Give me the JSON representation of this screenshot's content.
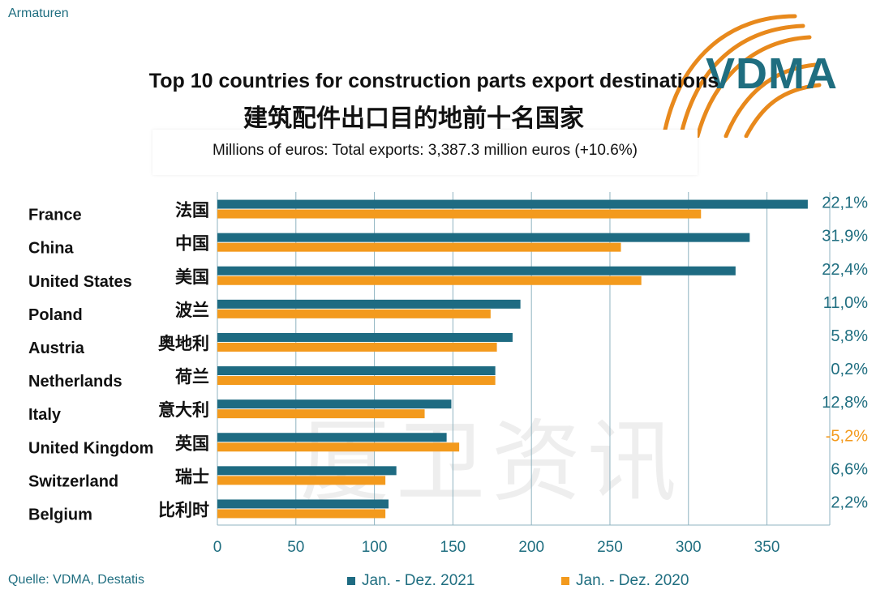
{
  "corner_label": "Armaturen",
  "logo_text": "VDMA",
  "watermark": "厦卫资讯",
  "chart_data": {
    "type": "bar",
    "orientation": "horizontal",
    "title": "Top 10 countries for construction parts export destinations",
    "title_cn": "建筑配件出口目的地前十名国家",
    "subtitle": "Millions of euros: Total exports: 3,387.3 million euros (+10.6%)",
    "categories": [
      "France",
      "China",
      "United States",
      "Poland",
      "Austria",
      "Netherlands",
      "Italy",
      "United Kingdom",
      "Switzerland",
      "Belgium"
    ],
    "categories_cn": [
      "法国",
      "中国",
      "美国",
      "波兰",
      "奥地利",
      "荷兰",
      "意大利",
      "英国",
      "瑞士",
      "比利时"
    ],
    "series": [
      {
        "name": "Jan. - Dez. 2021",
        "color": "#1e6b82",
        "values": [
          376,
          339,
          330,
          193,
          188,
          177,
          149,
          146,
          114,
          109
        ]
      },
      {
        "name": "Jan. - Dez. 2020",
        "color": "#f39a1d",
        "values": [
          308,
          257,
          270,
          174,
          178,
          177,
          132,
          154,
          107,
          107
        ]
      }
    ],
    "change_labels": [
      "22,1%",
      "31,9%",
      "22,4%",
      "11,0%",
      "5,8%",
      "0,2%",
      "12,8%",
      "-5,2%",
      "6,6%",
      "2,2%"
    ],
    "positive_color": "#1f6e80",
    "negative_color": "#f39a1d",
    "xlim": [
      0,
      390
    ],
    "xticks": [
      0,
      50,
      100,
      150,
      200,
      250,
      300,
      350
    ],
    "grid": true,
    "legend_position": "bottom"
  },
  "source": "Quelle: VDMA, Destatis"
}
